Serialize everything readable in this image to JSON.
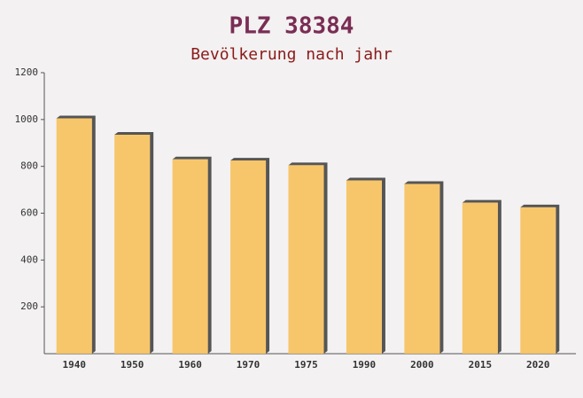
{
  "chart_data": {
    "type": "bar",
    "title": "PLZ 38384",
    "subtitle": "Bevölkerung nach jahr",
    "categories": [
      "1940",
      "1950",
      "1960",
      "1970",
      "1975",
      "1990",
      "2000",
      "2015",
      "2020"
    ],
    "values": [
      1005,
      935,
      830,
      825,
      805,
      740,
      725,
      645,
      625
    ],
    "color": "#f7c15c",
    "ylim": [
      0,
      1200
    ],
    "yticks": [
      200,
      400,
      600,
      800,
      1000,
      1200
    ],
    "grid": false
  }
}
